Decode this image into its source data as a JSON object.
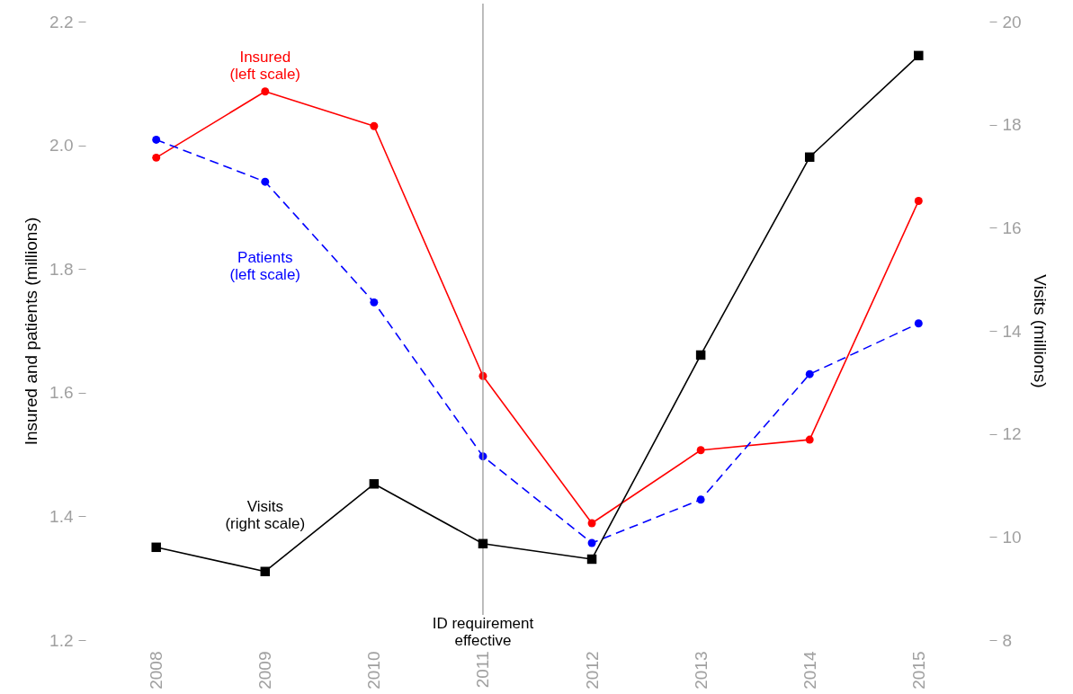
{
  "chart_data": {
    "type": "line",
    "categories": [
      "2008",
      "2009",
      "2010",
      "2011",
      "2012",
      "2013",
      "2014",
      "2015"
    ],
    "ylim": [
      1.2,
      2.2
    ],
    "yticks": [
      1.2,
      1.4,
      1.6,
      1.8,
      {
        "value": 2,
        "label": "2.0"
      },
      2.2
    ],
    "y2lim": [
      8,
      20
    ],
    "y2ticks": [
      8,
      10,
      12,
      14,
      16,
      18,
      20
    ],
    "ylabel": "Insured and patients (millions)",
    "y2label": "Visits (millions)",
    "grid": false,
    "series": [
      {
        "name": "Insured\n(left scale)",
        "color": "#ff0000",
        "marker": "circle",
        "line_style": "solid",
        "values": [
          1.98,
          2.087,
          2.031,
          1.627,
          1.389,
          1.507,
          1.524,
          1.91
        ]
      },
      {
        "name": "Patients\n(left scale)",
        "color": "#0000ff",
        "marker": "circle",
        "line_style": "dashed",
        "values": [
          2.009,
          1.941,
          1.746,
          1.497,
          1.357,
          1.427,
          1.63,
          1.712
        ]
      },
      {
        "name": "Visits\n(right scale)",
        "color": "#000000",
        "marker": "square",
        "line_style": "solid",
        "axis": "y2",
        "values": [
          9.8,
          9.33,
          11.03,
          9.87,
          9.57,
          13.53,
          17.37,
          19.34
        ]
      }
    ],
    "ref_lines": [
      {
        "axis": "x",
        "value": "2011",
        "label": "ID requirement\neffective",
        "color": "#999999"
      }
    ]
  }
}
